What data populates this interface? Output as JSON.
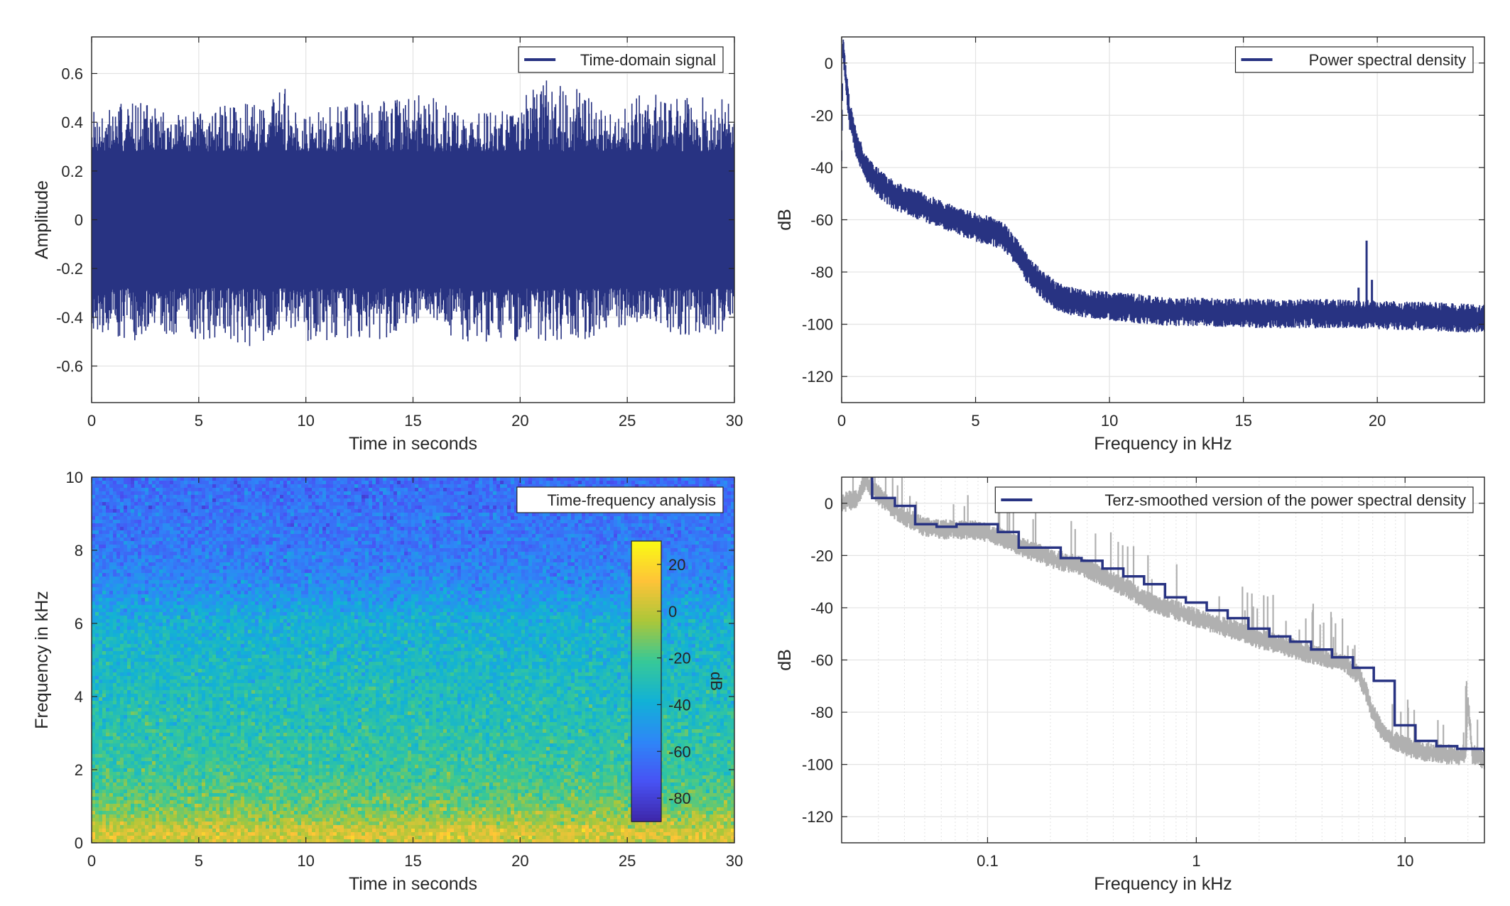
{
  "figure": {
    "layout": "2x2 subplot grid",
    "line_color": "#283382",
    "grid_color": "#e6e6e6",
    "axis_color": "#262626"
  },
  "chart_data": [
    {
      "id": "time-domain",
      "type": "area",
      "title": "",
      "xlabel": "Time in seconds",
      "ylabel": "Amplitude",
      "xlim": [
        0,
        30
      ],
      "ylim": [
        -0.75,
        0.75
      ],
      "xticks": [
        0,
        5,
        10,
        15,
        20,
        25,
        30
      ],
      "yticks": [
        -0.6,
        -0.4,
        -0.2,
        0,
        0.2,
        0.4,
        0.6
      ],
      "ytick_labels": [
        "-0.6",
        "-0.4",
        "-0.2",
        "0",
        "0.2",
        "0.4",
        "0.6"
      ],
      "grid": true,
      "legend": {
        "location": "top-right",
        "entries": [
          "Time-domain signal"
        ]
      },
      "series": [
        {
          "name": "Time-domain signal",
          "color": "#283382",
          "description": "broadband noise, dense band between about -0.28 and +0.28, peaks up to about +0.6 and -0.55",
          "x": [
            0,
            2,
            4,
            6,
            8,
            9,
            10,
            12,
            14,
            16,
            17.5,
            20,
            21.7,
            24,
            26,
            28,
            30
          ],
          "upper": [
            0.45,
            0.5,
            0.43,
            0.47,
            0.48,
            0.57,
            0.42,
            0.5,
            0.5,
            0.53,
            0.42,
            0.5,
            0.6,
            0.45,
            0.53,
            0.5,
            0.52
          ],
          "lower": [
            -0.45,
            -0.5,
            -0.48,
            -0.5,
            -0.55,
            -0.42,
            -0.5,
            -0.49,
            -0.5,
            -0.45,
            -0.5,
            -0.5,
            -0.52,
            -0.47,
            -0.42,
            -0.5,
            -0.45
          ],
          "band": 0.28
        }
      ]
    },
    {
      "id": "psd",
      "type": "line",
      "title": "",
      "xlabel": "Frequency in kHz",
      "ylabel": "dB",
      "xlim": [
        0,
        24
      ],
      "ylim": [
        -130,
        10
      ],
      "xticks": [
        0,
        5,
        10,
        15,
        20
      ],
      "yticks": [
        -120,
        -100,
        -80,
        -60,
        -40,
        -20,
        0
      ],
      "grid": true,
      "legend": {
        "location": "top-right",
        "entries": [
          "Power spectral density"
        ]
      },
      "series": [
        {
          "name": "Power spectral density",
          "color": "#283382",
          "x": [
            0,
            0.05,
            0.15,
            0.3,
            0.6,
            1,
            1.5,
            2,
            3,
            4,
            5,
            5.5,
            6,
            6.5,
            7,
            7.5,
            8,
            8.5,
            9,
            10,
            11,
            12,
            14,
            16,
            18,
            19,
            20,
            22,
            24
          ],
          "y": [
            -36,
            8,
            -5,
            -20,
            -33,
            -42,
            -47,
            -51,
            -55,
            -59,
            -63,
            -64,
            -66,
            -72,
            -80,
            -85,
            -89,
            -91,
            -92,
            -93,
            -94,
            -95,
            -95.5,
            -96,
            -96,
            -96,
            -96.5,
            -97,
            -98
          ],
          "spread": 4,
          "spikes": [
            {
              "x": 19.3,
              "y": -86
            },
            {
              "x": 19.6,
              "y": -68
            },
            {
              "x": 19.8,
              "y": -83
            }
          ]
        }
      ]
    },
    {
      "id": "spectrogram",
      "type": "heatmap",
      "title": "",
      "xlabel": "Time in seconds",
      "ylabel": "Frequency in kHz",
      "xlim": [
        0,
        30
      ],
      "ylim": [
        0,
        10
      ],
      "xticks": [
        0,
        5,
        10,
        15,
        20,
        25,
        30
      ],
      "yticks": [
        0,
        2,
        4,
        6,
        8,
        10
      ],
      "legend": {
        "location": "top-right",
        "entries": [
          "Time-frequency analysis"
        ]
      },
      "colorbar": {
        "label": "dB",
        "range": [
          -90,
          30
        ],
        "ticks": [
          20,
          0,
          -20,
          -40,
          -60,
          -80
        ],
        "colormap": "parula"
      },
      "profile": {
        "freq_khz": [
          0,
          0.3,
          0.6,
          1,
          1.5,
          2,
          3,
          4,
          5,
          6,
          6.5,
          7,
          7.5,
          8,
          9,
          10
        ],
        "level_db": [
          2,
          5,
          -5,
          -14,
          -19,
          -23,
          -27,
          -31,
          -35,
          -38,
          -45,
          -53,
          -57,
          -60,
          -62,
          -64
        ]
      },
      "noise_db": 7
    },
    {
      "id": "terz",
      "type": "line",
      "title": "",
      "xlabel": "Frequency in kHz",
      "ylabel": "dB",
      "xscale": "log",
      "xlim": [
        0.02,
        24
      ],
      "ylim": [
        -130,
        10
      ],
      "xticks": [
        0.1,
        1,
        10
      ],
      "xtick_labels": [
        "0.1",
        "1",
        "10"
      ],
      "yticks": [
        -120,
        -100,
        -80,
        -60,
        -40,
        -20,
        0
      ],
      "grid": true,
      "legend": {
        "location": "top-right",
        "entries": [
          "Terz-smoothed version of the power spectral density"
        ]
      },
      "series": [
        {
          "name": "",
          "color": "#b0b0b0",
          "x": [
            0.02,
            0.024,
            0.026,
            0.03,
            0.035,
            0.04,
            0.05,
            0.06,
            0.08,
            0.1,
            0.13,
            0.16,
            0.2,
            0.25,
            0.3,
            0.4,
            0.5,
            0.6,
            0.8,
            1,
            1.3,
            1.6,
            2,
            2.5,
            3,
            4,
            5,
            5.5,
            6,
            6.5,
            7,
            7.5,
            8,
            9,
            10,
            12,
            15,
            18,
            19.5,
            20,
            21,
            24
          ],
          "y": [
            0,
            2,
            9,
            3,
            -2,
            -5,
            -9,
            -10,
            -10,
            -11,
            -15,
            -18,
            -21,
            -23,
            -25,
            -30,
            -34,
            -38,
            -41,
            -44,
            -47,
            -49,
            -52,
            -54,
            -56,
            -59,
            -61,
            -63,
            -66,
            -72,
            -80,
            -85,
            -89,
            -91,
            -93,
            -95,
            -96,
            -96.5,
            -96,
            -75,
            -96,
            -98
          ],
          "spread": 3
        },
        {
          "name": "Terz-smoothed version of the power spectral density",
          "color": "#283382",
          "edges": [
            0.028,
            0.036,
            0.045,
            0.057,
            0.071,
            0.09,
            0.112,
            0.141,
            0.178,
            0.224,
            0.282,
            0.355,
            0.447,
            0.562,
            0.708,
            0.891,
            1.122,
            1.413,
            1.778,
            2.239,
            2.818,
            3.548,
            4.467,
            5.623,
            7.079,
            8.913,
            11.22,
            14.13,
            17.78,
            24
          ],
          "levels": [
            2,
            -1,
            -8,
            -9,
            -8,
            -8,
            -11,
            -17,
            -17,
            -21,
            -22,
            -25,
            -28,
            -31,
            -36,
            -38,
            -41,
            -44,
            -48,
            -51,
            -53,
            -56,
            -59,
            -63,
            -68,
            -85,
            -91,
            -93,
            -94,
            -95
          ]
        }
      ]
    }
  ]
}
